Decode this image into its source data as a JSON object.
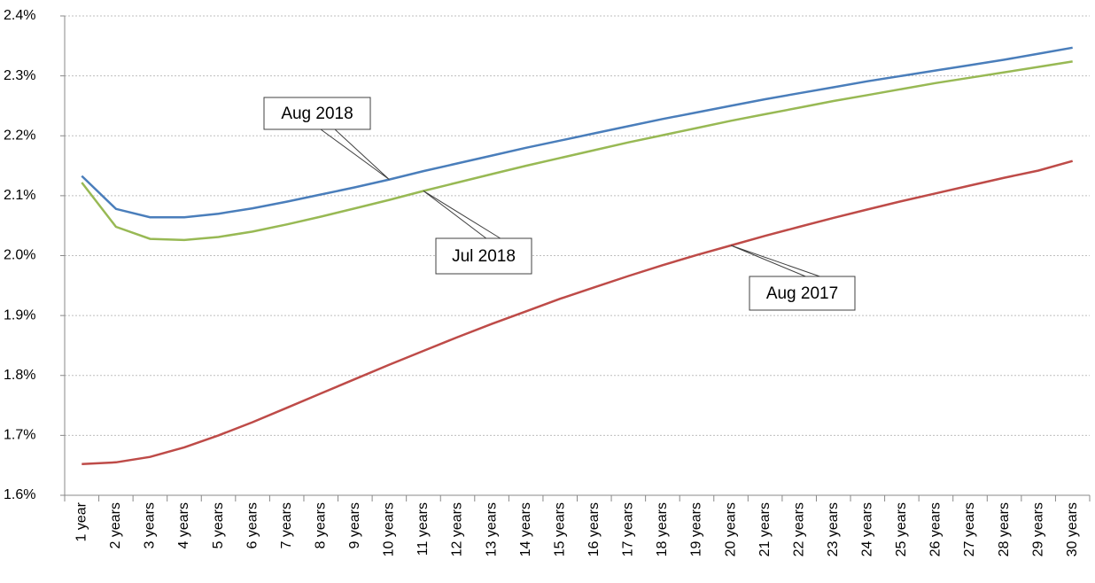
{
  "chart_data": {
    "type": "line",
    "categories": [
      "1 year",
      "2 years",
      "3 years",
      "4 years",
      "5 years",
      "6 years",
      "7 years",
      "8 years",
      "9 years",
      "10 years",
      "11 years",
      "12 years",
      "13 years",
      "14 years",
      "15 years",
      "16 years",
      "17 years",
      "18 years",
      "19 years",
      "20 years",
      "21 years",
      "22 years",
      "23 years",
      "24 years",
      "25 years",
      "26 years",
      "27 years",
      "28 years",
      "29 years",
      "30 years"
    ],
    "series": [
      {
        "name": "Aug 2018",
        "color": "#4a7ebb",
        "values": [
          2.133,
          2.078,
          2.064,
          2.064,
          2.07,
          2.079,
          2.09,
          2.102,
          2.114,
          2.127,
          2.141,
          2.154,
          2.167,
          2.18,
          2.192,
          2.204,
          2.216,
          2.228,
          2.239,
          2.25,
          2.261,
          2.271,
          2.281,
          2.291,
          2.3,
          2.309,
          2.318,
          2.327,
          2.337,
          2.347
        ]
      },
      {
        "name": "Jul 2018",
        "color": "#98b954",
        "values": [
          2.122,
          2.048,
          2.028,
          2.026,
          2.031,
          2.04,
          2.052,
          2.065,
          2.079,
          2.093,
          2.108,
          2.122,
          2.136,
          2.15,
          2.163,
          2.176,
          2.189,
          2.201,
          2.213,
          2.225,
          2.236,
          2.247,
          2.258,
          2.268,
          2.278,
          2.288,
          2.297,
          2.306,
          2.315,
          2.324
        ]
      },
      {
        "name": "Aug 2017",
        "color": "#be4b48",
        "values": [
          1.652,
          1.655,
          1.664,
          1.68,
          1.7,
          1.722,
          1.746,
          1.77,
          1.794,
          1.818,
          1.841,
          1.864,
          1.886,
          1.907,
          1.928,
          1.947,
          1.966,
          1.984,
          2.001,
          2.017,
          2.033,
          2.048,
          2.063,
          2.077,
          2.091,
          2.104,
          2.117,
          2.13,
          2.142,
          2.158
        ]
      }
    ],
    "ylim": [
      1.6,
      2.4
    ],
    "yticks": [
      {
        "value": 1.6,
        "label": "1.6%"
      },
      {
        "value": 1.7,
        "label": "1.7%"
      },
      {
        "value": 1.8,
        "label": "1.8%"
      },
      {
        "value": 1.9,
        "label": "1.9%"
      },
      {
        "value": 2.0,
        "label": "2.0%"
      },
      {
        "value": 2.1,
        "label": "2.1%"
      },
      {
        "value": 2.2,
        "label": "2.2%"
      },
      {
        "value": 2.3,
        "label": "2.3%"
      },
      {
        "value": 2.4,
        "label": "2.4%"
      }
    ],
    "grid": true
  }
}
